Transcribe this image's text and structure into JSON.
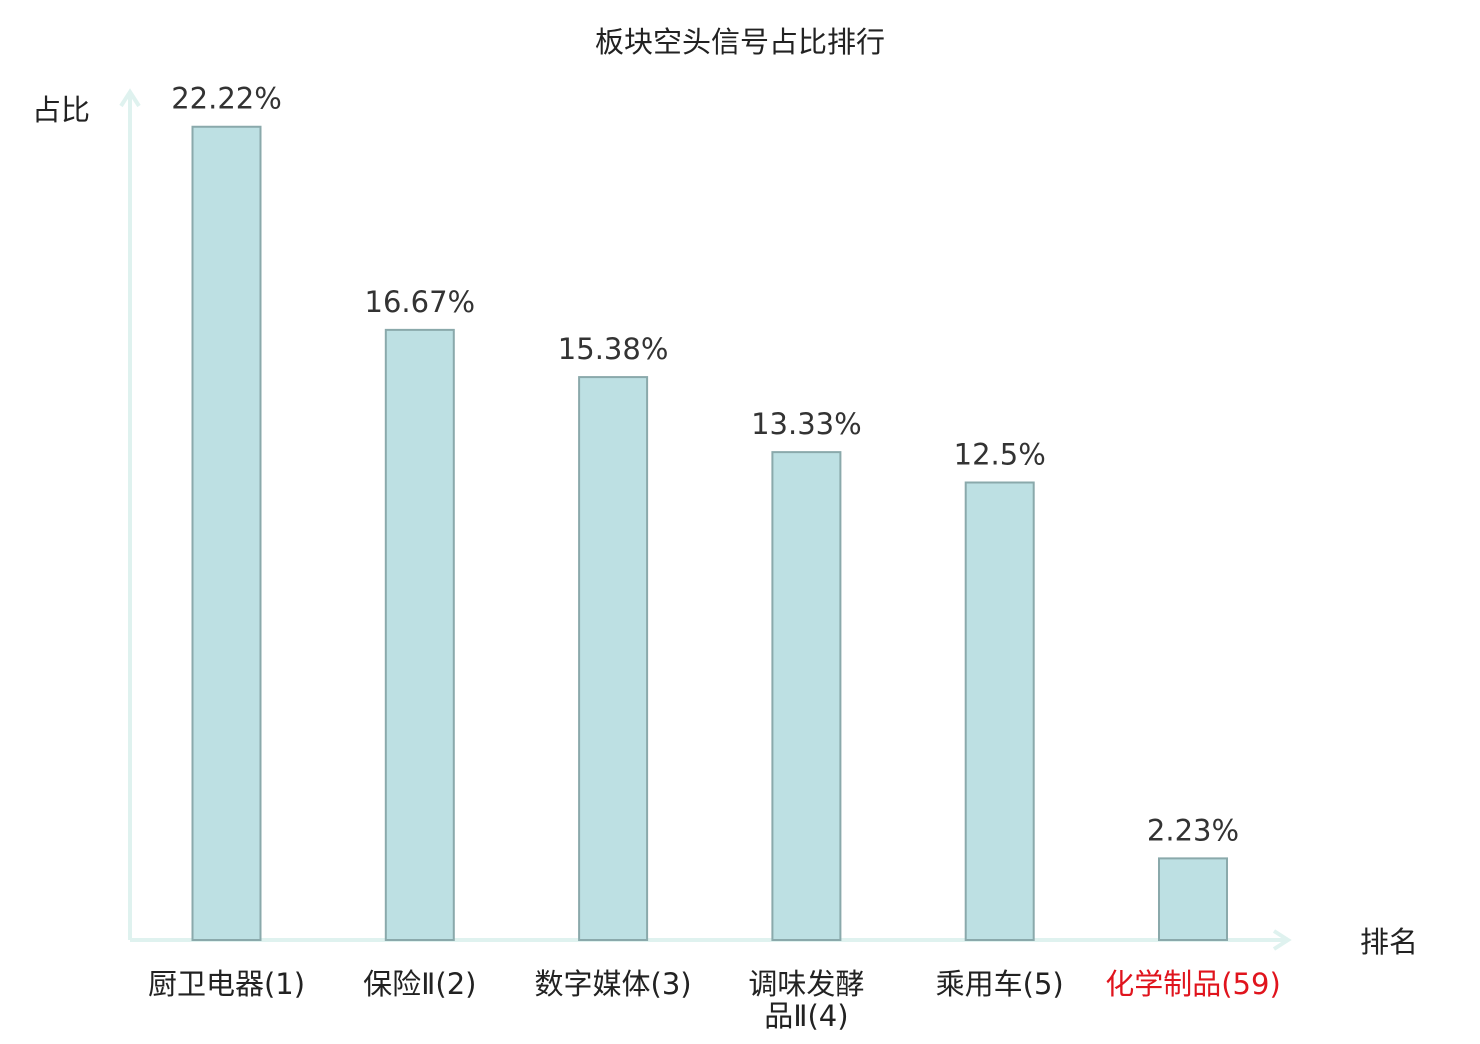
{
  "chart_data": {
    "type": "bar",
    "title": "板块空头信号占比排行",
    "xlabel": "排名",
    "ylabel": "占比",
    "categories": [
      [
        "厨卫电器(1)"
      ],
      [
        "保险Ⅱ(2)"
      ],
      [
        "数字媒体(3)"
      ],
      [
        "调味发酵",
        "品Ⅱ(4)"
      ],
      [
        "乘用车(5)"
      ],
      [
        "化学制品(59)"
      ]
    ],
    "values": [
      22.22,
      16.67,
      15.38,
      13.33,
      12.5,
      2.23
    ],
    "value_labels": [
      "22.22%",
      "16.67%",
      "15.38%",
      "13.33%",
      "12.5%",
      "2.23%"
    ],
    "ylim": [
      0,
      25
    ],
    "grid": false,
    "highlight_index": 5,
    "colors": {
      "bar_fill": "#bde0e3",
      "bar_stroke": "#8aa9ab",
      "axis": "#dff2ef",
      "text": "#333333",
      "label": "#222222",
      "highlight": "#e0141d"
    }
  }
}
